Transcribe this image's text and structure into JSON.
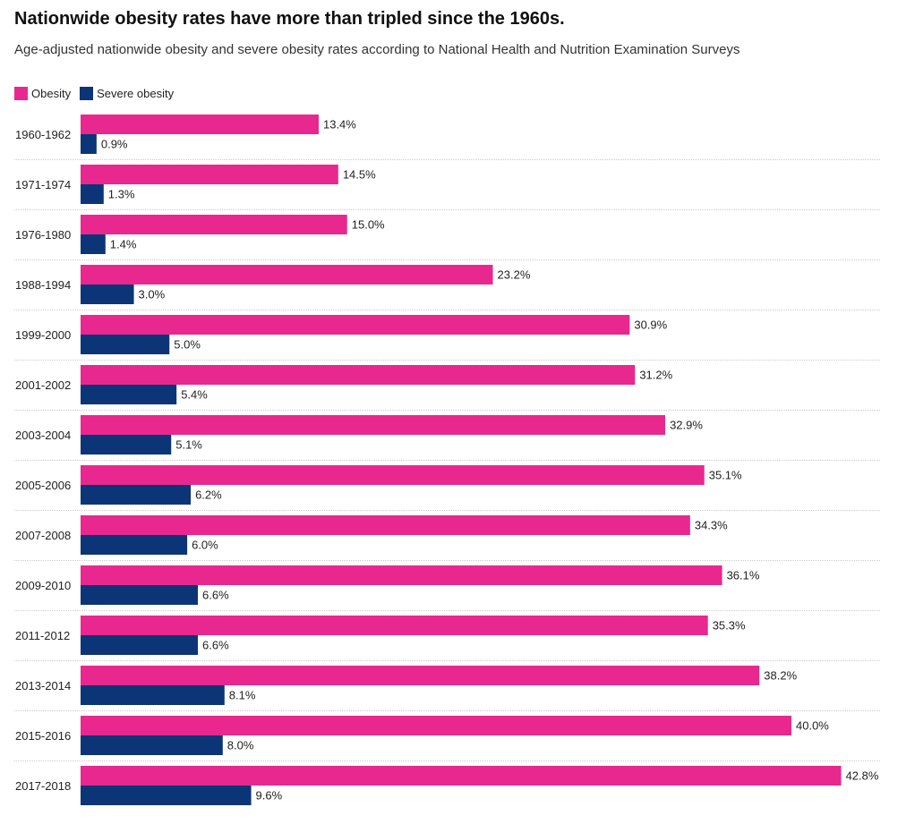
{
  "title": "Nationwide obesity rates have more than tripled since the 1960s.",
  "subtitle": "Age-adjusted nationwide obesity and severe obesity rates according to National Health and Nutrition Examination Surveys",
  "colors": {
    "obesity": "#e8288e",
    "severe": "#0b3577",
    "separator": "#cccccc"
  },
  "chart_data": {
    "type": "bar",
    "orientation": "horizontal",
    "title": "Nationwide obesity rates have more than tripled since the 1960s.",
    "subtitle": "Age-adjusted nationwide obesity and severe obesity rates according to National Health and Nutrition Examination Surveys",
    "legend_position": "top-left",
    "value_suffix": "%",
    "xlim": [
      0,
      45
    ],
    "categories": [
      "1960-1962",
      "1971-1974",
      "1976-1980",
      "1988-1994",
      "1999-2000",
      "2001-2002",
      "2003-2004",
      "2005-2006",
      "2007-2008",
      "2009-2010",
      "2011-2012",
      "2013-2014",
      "2015-2016",
      "2017-2018"
    ],
    "series": [
      {
        "name": "Obesity",
        "color": "#e8288e",
        "values": [
          13.4,
          14.5,
          15.0,
          23.2,
          30.9,
          31.2,
          32.9,
          35.1,
          34.3,
          36.1,
          35.3,
          38.2,
          40.0,
          42.8
        ],
        "labels": [
          "13.4%",
          "14.5%",
          "15.0%",
          "23.2%",
          "30.9%",
          "31.2%",
          "32.9%",
          "35.1%",
          "34.3%",
          "36.1%",
          "35.3%",
          "38.2%",
          "40.0%",
          "42.8%"
        ]
      },
      {
        "name": "Severe obesity",
        "color": "#0b3577",
        "values": [
          0.9,
          1.3,
          1.4,
          3.0,
          5.0,
          5.4,
          5.1,
          6.2,
          6.0,
          6.6,
          6.6,
          8.1,
          8.0,
          9.6
        ],
        "labels": [
          "0.9%",
          "1.3%",
          "1.4%",
          "3.0%",
          "5.0%",
          "5.4%",
          "5.1%",
          "6.2%",
          "6.0%",
          "6.6%",
          "6.6%",
          "8.1%",
          "8.0%",
          "9.6%"
        ]
      }
    ]
  }
}
